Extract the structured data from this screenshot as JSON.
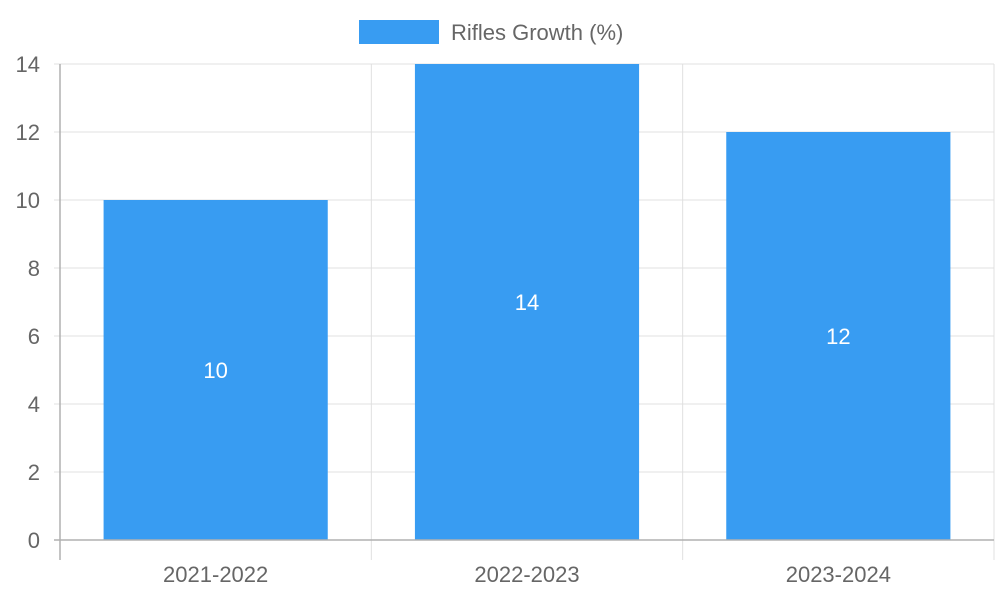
{
  "chart_data": {
    "type": "bar",
    "categories": [
      "2021-2022",
      "2022-2023",
      "2023-2024"
    ],
    "series": [
      {
        "name": "Rifles Growth (%)",
        "values": [
          10,
          14,
          12
        ],
        "color": "#389cf2"
      }
    ],
    "ylim": [
      0,
      14
    ],
    "yticks": [
      0,
      2,
      4,
      6,
      8,
      10,
      12,
      14
    ],
    "grid": true,
    "legend_position": "top-center",
    "data_labels": true
  }
}
